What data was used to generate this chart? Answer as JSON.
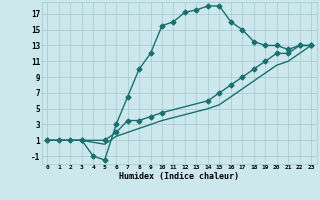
{
  "title": "",
  "xlabel": "Humidex (Indice chaleur)",
  "background_color": "#cce8ec",
  "grid_color": "#aacdd4",
  "line_color": "#1a7070",
  "xlim": [
    -0.5,
    23.5
  ],
  "ylim": [
    -2,
    18.5
  ],
  "xticks": [
    0,
    1,
    2,
    3,
    4,
    5,
    6,
    7,
    8,
    9,
    10,
    11,
    12,
    13,
    14,
    15,
    16,
    17,
    18,
    19,
    20,
    21,
    22,
    23
  ],
  "yticks": [
    -1,
    1,
    3,
    5,
    7,
    9,
    11,
    13,
    15,
    17
  ],
  "line1_x": [
    0,
    1,
    2,
    3,
    4,
    5,
    6,
    7,
    8,
    9,
    10,
    11,
    12,
    13,
    14,
    15,
    16,
    17,
    18,
    19,
    20,
    21,
    22,
    23
  ],
  "line1_y": [
    1,
    1,
    1,
    1,
    -1,
    -1.5,
    3,
    6.5,
    10,
    12,
    15.5,
    16,
    17.2,
    17.5,
    18,
    18,
    16,
    15,
    13.5,
    13,
    13,
    12.5,
    13,
    13
  ],
  "line2_x": [
    0,
    3,
    5,
    6,
    7,
    8,
    9,
    10,
    14,
    15,
    16,
    17,
    18,
    19,
    20,
    21,
    22,
    23
  ],
  "line2_y": [
    1,
    1,
    1,
    2,
    3.5,
    3.5,
    4,
    4.5,
    6,
    7,
    8,
    9,
    10,
    11,
    12,
    12,
    13,
    13
  ],
  "line3_x": [
    0,
    3,
    5,
    6,
    7,
    8,
    9,
    10,
    14,
    15,
    16,
    17,
    18,
    19,
    20,
    21,
    22,
    23
  ],
  "line3_y": [
    1,
    1,
    0.5,
    1.5,
    2,
    2.5,
    3,
    3.5,
    5,
    5.5,
    6.5,
    7.5,
    8.5,
    9.5,
    10.5,
    11,
    12,
    13
  ],
  "marker": "D",
  "markersize": 2.5,
  "linewidth": 1.0
}
